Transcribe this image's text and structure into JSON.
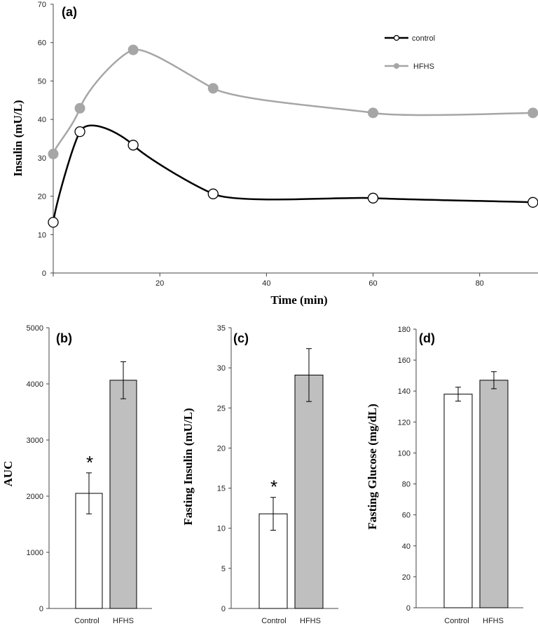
{
  "chart_data": [
    {
      "type": "line",
      "panel_label": "(a)",
      "xlabel": "Time (min)",
      "ylabel": "Insulin (mU/L)",
      "xlim": [
        0,
        92
      ],
      "ylim": [
        0,
        70
      ],
      "x_ticks": [
        20,
        40,
        60,
        80
      ],
      "y_ticks": [
        0,
        10,
        20,
        30,
        40,
        50,
        60,
        70
      ],
      "x": [
        0,
        5,
        15,
        30,
        60,
        90
      ],
      "legend_position": "top-right",
      "series": [
        {
          "name": "control",
          "values": [
            13.2,
            36.8,
            33.3,
            20.6,
            19.5,
            18.4
          ],
          "color": "#000000",
          "marker": "open-circle"
        },
        {
          "name": "HFHS",
          "values": [
            31.0,
            42.9,
            58.1,
            48.1,
            41.7,
            41.7
          ],
          "color": "#a6a6a6",
          "marker": "filled-circle"
        }
      ]
    },
    {
      "type": "bar",
      "panel_label": "(b)",
      "ylabel": "AUC",
      "categories": [
        "Control",
        "HFHS"
      ],
      "values": [
        2050,
        4065
      ],
      "errors": [
        365,
        330
      ],
      "ylim": [
        0,
        5000
      ],
      "y_ticks": [
        0,
        1000,
        2000,
        3000,
        4000,
        5000
      ],
      "colors": [
        "#ffffff",
        "#bfbfbf"
      ],
      "significance": [
        "*",
        ""
      ]
    },
    {
      "type": "bar",
      "panel_label": "(c)",
      "ylabel": "Fasting Insulin (mU/L)",
      "categories": [
        "Control",
        "HFHS"
      ],
      "values": [
        11.8,
        29.1
      ],
      "errors": [
        2.05,
        3.3
      ],
      "ylim": [
        0,
        35
      ],
      "y_ticks": [
        0,
        5,
        10,
        15,
        20,
        25,
        30,
        35
      ],
      "colors": [
        "#ffffff",
        "#bfbfbf"
      ],
      "significance": [
        "*",
        ""
      ]
    },
    {
      "type": "bar",
      "panel_label": "(d)",
      "ylabel": "Fasting Glucose (mg/dL)",
      "categories": [
        "Control",
        "HFHS"
      ],
      "values": [
        138,
        147
      ],
      "errors": [
        4.5,
        5.5
      ],
      "ylim": [
        0,
        180
      ],
      "y_ticks": [
        0,
        20,
        40,
        60,
        80,
        100,
        120,
        140,
        160,
        180
      ],
      "colors": [
        "#ffffff",
        "#bfbfbf"
      ],
      "significance": [
        "",
        ""
      ]
    }
  ]
}
